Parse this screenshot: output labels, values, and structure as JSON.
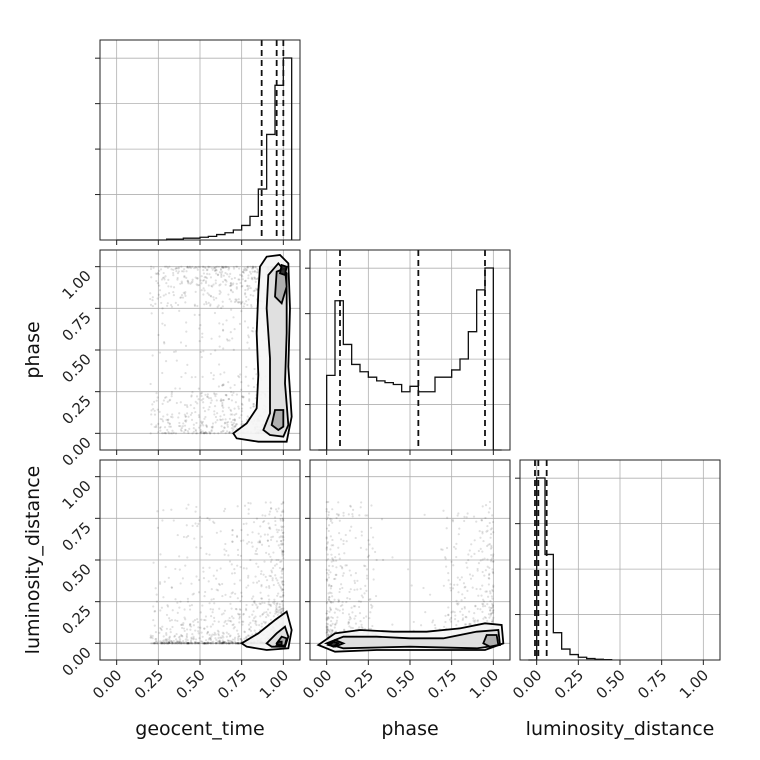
{
  "chart_data": {
    "type": "corner",
    "parameters": [
      "geocent_time",
      "phase",
      "luminosity_distance"
    ],
    "tick_labels": [
      "0.00",
      "0.25",
      "0.50",
      "0.75",
      "1.00"
    ],
    "axis_range": [
      -0.1,
      1.1
    ],
    "grid": true,
    "colors": {
      "line": "#111111",
      "points": "#000000",
      "grid": "#b0b0b0"
    },
    "histograms": [
      {
        "parameter": "geocent_time",
        "bin_edges": [
          0.0,
          0.05,
          0.1,
          0.15,
          0.2,
          0.25,
          0.3,
          0.35,
          0.4,
          0.45,
          0.5,
          0.55,
          0.6,
          0.65,
          0.7,
          0.75,
          0.8,
          0.85,
          0.9,
          0.95,
          1.0,
          1.05
        ],
        "heights": [
          0,
          0,
          0,
          0,
          0,
          0,
          0.005,
          0.005,
          0.01,
          0.01,
          0.015,
          0.02,
          0.03,
          0.04,
          0.055,
          0.08,
          0.13,
          0.28,
          0.58,
          0.85,
          1.0
        ],
        "quantiles": [
          0.87,
          0.96,
          1.0
        ]
      },
      {
        "parameter": "phase",
        "bin_edges": [
          -0.05,
          0.0,
          0.05,
          0.1,
          0.15,
          0.2,
          0.25,
          0.3,
          0.35,
          0.4,
          0.45,
          0.5,
          0.55,
          0.6,
          0.65,
          0.7,
          0.75,
          0.8,
          0.85,
          0.9,
          0.95,
          1.0,
          1.05
        ],
        "heights": [
          0,
          0.41,
          0.82,
          0.58,
          0.47,
          0.43,
          0.4,
          0.38,
          0.37,
          0.36,
          0.32,
          0.35,
          0.32,
          0.32,
          0.4,
          0.4,
          0.44,
          0.5,
          0.65,
          0.88,
          1.0,
          0
        ],
        "quantiles": [
          0.08,
          0.55,
          0.95
        ]
      },
      {
        "parameter": "luminosity_distance",
        "bin_edges": [
          -0.05,
          0.0,
          0.05,
          0.1,
          0.15,
          0.2,
          0.25,
          0.3,
          0.35,
          0.4,
          0.45
        ],
        "heights": [
          0,
          1.0,
          0.58,
          0.15,
          0.06,
          0.03,
          0.015,
          0.008,
          0.004,
          0.002
        ],
        "quantiles": [
          -0.01,
          0.01,
          0.06
        ]
      }
    ],
    "contour_panels": [
      {
        "x": "geocent_time",
        "y": "phase",
        "levels": [
          {
            "shade": "#f5f5f5",
            "points": [
              [
                0.7,
                0.0
              ],
              [
                0.78,
                0.06
              ],
              [
                0.84,
                0.15
              ],
              [
                0.85,
                0.35
              ],
              [
                0.84,
                0.6
              ],
              [
                0.85,
                0.85
              ],
              [
                0.86,
                1.0
              ],
              [
                0.9,
                1.06
              ],
              [
                0.98,
                1.07
              ],
              [
                1.03,
                1.02
              ],
              [
                1.04,
                0.75
              ],
              [
                1.03,
                0.4
              ],
              [
                1.05,
                0.1
              ],
              [
                1.02,
                -0.05
              ],
              [
                0.85,
                -0.05
              ],
              [
                0.72,
                -0.03
              ]
            ]
          },
          {
            "shade": "#dedede",
            "points": [
              [
                0.88,
                0.02
              ],
              [
                0.92,
                0.12
              ],
              [
                0.92,
                0.45
              ],
              [
                0.9,
                0.75
              ],
              [
                0.91,
                0.95
              ],
              [
                0.97,
                1.02
              ],
              [
                1.02,
                0.96
              ],
              [
                1.02,
                0.6
              ],
              [
                1.01,
                0.3
              ],
              [
                1.03,
                0.05
              ],
              [
                1.0,
                -0.02
              ],
              [
                0.92,
                -0.01
              ]
            ]
          },
          {
            "shade": "#a8a8a8",
            "points": [
              [
                0.93,
                0.05
              ],
              [
                0.95,
                0.14
              ],
              [
                1.0,
                0.14
              ],
              [
                1.0,
                0.04
              ],
              [
                0.97,
                0.02
              ]
            ]
          },
          {
            "shade": "#a8a8a8",
            "points": [
              [
                0.95,
                0.82
              ],
              [
                0.96,
                0.97
              ],
              [
                1.01,
                0.99
              ],
              [
                1.02,
                0.88
              ],
              [
                0.99,
                0.78
              ]
            ]
          },
          {
            "shade": "#222222",
            "points": [
              [
                0.98,
                0.96
              ],
              [
                0.99,
                1.01
              ],
              [
                1.02,
                1.0
              ],
              [
                1.01,
                0.95
              ]
            ]
          }
        ],
        "points_region": {
          "x": [
            0.2,
            1.0
          ],
          "y": [
            0.0,
            1.0
          ]
        }
      },
      {
        "x": "geocent_time",
        "y": "luminosity_distance",
        "levels": [
          {
            "shade": "#f5f5f5",
            "points": [
              [
                0.75,
                0.0
              ],
              [
                0.85,
                0.06
              ],
              [
                0.95,
                0.14
              ],
              [
                1.02,
                0.19
              ],
              [
                1.05,
                0.08
              ],
              [
                1.03,
                -0.03
              ],
              [
                0.9,
                -0.04
              ],
              [
                0.78,
                -0.02
              ]
            ]
          },
          {
            "shade": "#dedede",
            "points": [
              [
                0.9,
                0.0
              ],
              [
                0.96,
                0.06
              ],
              [
                1.01,
                0.1
              ],
              [
                1.03,
                0.04
              ],
              [
                1.01,
                -0.02
              ],
              [
                0.93,
                -0.02
              ]
            ]
          },
          {
            "shade": "#a8a8a8",
            "points": [
              [
                0.96,
                0.0
              ],
              [
                0.99,
                0.04
              ],
              [
                1.02,
                0.03
              ],
              [
                1.01,
                -0.01
              ],
              [
                0.98,
                -0.02
              ]
            ]
          },
          {
            "shade": "#222222",
            "points": [
              [
                0.96,
                -0.01
              ],
              [
                0.97,
                0.01
              ],
              [
                0.99,
                0.01
              ],
              [
                0.99,
                -0.01
              ]
            ]
          }
        ],
        "points_region": {
          "x": [
            0.2,
            1.0
          ],
          "y": [
            0.0,
            0.85
          ]
        }
      },
      {
        "x": "phase",
        "y": "luminosity_distance",
        "levels": [
          {
            "shade": "#f5f5f5",
            "points": [
              [
                -0.05,
                -0.01
              ],
              [
                0.05,
                0.06
              ],
              [
                0.2,
                0.08
              ],
              [
                0.4,
                0.07
              ],
              [
                0.6,
                0.07
              ],
              [
                0.8,
                0.09
              ],
              [
                0.95,
                0.12
              ],
              [
                1.05,
                0.11
              ],
              [
                1.06,
                0.0
              ],
              [
                0.95,
                -0.04
              ],
              [
                0.6,
                -0.04
              ],
              [
                0.3,
                -0.04
              ],
              [
                0.05,
                -0.05
              ]
            ]
          },
          {
            "shade": "#dedede",
            "points": [
              [
                0.0,
                0.0
              ],
              [
                0.1,
                0.04
              ],
              [
                0.3,
                0.04
              ],
              [
                0.5,
                0.03
              ],
              [
                0.7,
                0.03
              ],
              [
                0.9,
                0.07
              ],
              [
                1.03,
                0.08
              ],
              [
                1.04,
                -0.01
              ],
              [
                0.9,
                -0.03
              ],
              [
                0.5,
                -0.02
              ],
              [
                0.1,
                -0.03
              ]
            ]
          },
          {
            "shade": "#a8a8a8",
            "points": [
              [
                0.01,
                -0.01
              ],
              [
                0.05,
                0.02
              ],
              [
                0.1,
                0.0
              ],
              [
                0.05,
                -0.02
              ]
            ]
          },
          {
            "shade": "#a8a8a8",
            "points": [
              [
                0.94,
                0.0
              ],
              [
                0.96,
                0.05
              ],
              [
                1.02,
                0.05
              ],
              [
                1.03,
                -0.01
              ],
              [
                0.98,
                -0.02
              ]
            ]
          },
          {
            "shade": "#222222",
            "points": [
              [
                0.02,
                -0.01
              ],
              [
                0.04,
                0.01
              ],
              [
                0.07,
                0.0
              ],
              [
                0.04,
                -0.02
              ]
            ]
          }
        ],
        "points_region": {
          "x": [
            0.0,
            1.0
          ],
          "y": [
            0.0,
            0.85
          ]
        }
      }
    ]
  }
}
